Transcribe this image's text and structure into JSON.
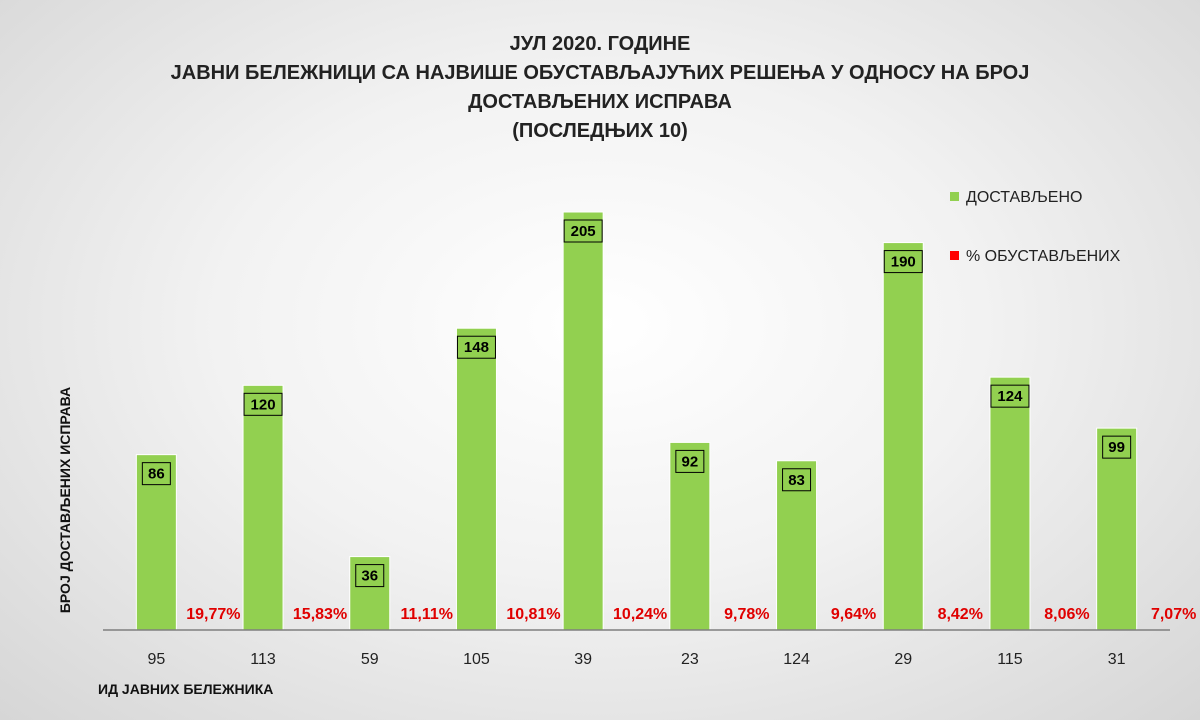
{
  "title_lines": [
    "ЈУЛ 2020. ГОДИНЕ",
    "ЈАВНИ БЕЛЕЖНИЦИ СА НАЈВИШЕ ОБУСТАВЉАЈУЋИХ РЕШЕЊА У ОДНОСУ НА БРОЈ",
    "ДОСТАВЉЕНИХ ИСПРАВА",
    "(ПОСЛЕДЊИХ 10)"
  ],
  "colors": {
    "bar": "#92d050",
    "percent": "#e00000",
    "legend_percent": "#ff0000"
  },
  "chart_data": {
    "type": "bar",
    "categories": [
      "95",
      "113",
      "59",
      "105",
      "39",
      "23",
      "124",
      "29",
      "115",
      "31"
    ],
    "series": [
      {
        "name": "ДОСТАВЉЕНО",
        "values": [
          86,
          120,
          36,
          148,
          205,
          92,
          83,
          190,
          124,
          99
        ]
      },
      {
        "name": "% ОБУСТАВЉЕНИХ",
        "values": [
          "19,77%",
          "15,83%",
          "11,11%",
          "10,81%",
          "10,24%",
          "9,78%",
          "9,64%",
          "8,42%",
          "8,06%",
          "7,07%"
        ]
      }
    ],
    "xlabel": "ИД ЈАВНИХ БЕЛЕЖНИКА",
    "ylabel": "БРОЈ ДОСТАВЉЕНИХ ИСПРАВА",
    "ylim": [
      0,
      205
    ],
    "grid": false,
    "legend_position": "top-right"
  }
}
